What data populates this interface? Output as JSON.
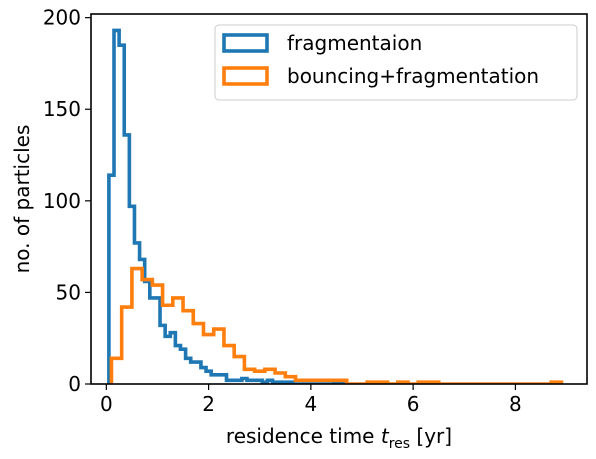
{
  "chart_data": {
    "type": "histogram",
    "xlabel_prefix": "residence time ",
    "xlabel_var": "t",
    "xlabel_sub": "res",
    "xlabel_suffix": " [yr]",
    "ylabel": "no. of particles",
    "xlim": [
      -0.3,
      9.4
    ],
    "ylim": [
      0,
      202
    ],
    "xticks": [
      0,
      2,
      4,
      6,
      8
    ],
    "yticks": [
      0,
      50,
      100,
      150,
      200
    ],
    "legend_position": "top-right",
    "series": [
      {
        "name": "fragmentaion",
        "color": "#1f77b4",
        "bin_edges": [
          0.05,
          0.15,
          0.25,
          0.35,
          0.45,
          0.55,
          0.65,
          0.75,
          0.85,
          0.95,
          1.05,
          1.15,
          1.25,
          1.35,
          1.45,
          1.55,
          1.65,
          1.75,
          1.85,
          1.95,
          2.05,
          2.15,
          2.25,
          2.35,
          2.45,
          2.55,
          2.65,
          2.75,
          2.85,
          2.95,
          3.05,
          3.15,
          3.25,
          3.35,
          3.45,
          3.55,
          3.65,
          3.75,
          3.85,
          3.95,
          4.05,
          4.15,
          4.25,
          4.35,
          4.45,
          4.55,
          4.65
        ],
        "counts": [
          114,
          193,
          185,
          136,
          97,
          77,
          68,
          56,
          47,
          47,
          32,
          26,
          28,
          21,
          19,
          14,
          12,
          12,
          9,
          7,
          5,
          5,
          5,
          2,
          2,
          2,
          3,
          2,
          2,
          2,
          1,
          2,
          1,
          1,
          1,
          1,
          0,
          0,
          0,
          0,
          0,
          0,
          0,
          0,
          1,
          1
        ]
      },
      {
        "name": "bouncing+fragmentation",
        "color": "#ff7f0e",
        "bin_edges": [
          0.1,
          0.3,
          0.5,
          0.7,
          0.9,
          1.1,
          1.3,
          1.5,
          1.7,
          1.9,
          2.1,
          2.3,
          2.5,
          2.7,
          2.9,
          3.1,
          3.3,
          3.5,
          3.7,
          3.9,
          4.1,
          4.3,
          4.5,
          4.7,
          4.9,
          5.1,
          5.3,
          5.5,
          5.7,
          5.9,
          6.1,
          6.3,
          6.5,
          6.7,
          6.9,
          7.1,
          7.3,
          7.5,
          7.7,
          7.9,
          8.1,
          8.3,
          8.5,
          8.7,
          8.9
        ],
        "counts": [
          14,
          42,
          63,
          57,
          54,
          43,
          47,
          40,
          33,
          27,
          30,
          21,
          15,
          8,
          7,
          8,
          6,
          4,
          2,
          2,
          2,
          2,
          2,
          0,
          0,
          1,
          1,
          0,
          1,
          0,
          1,
          1,
          0,
          0,
          0,
          0,
          0,
          0,
          0,
          0,
          0,
          0,
          0,
          1
        ]
      }
    ]
  }
}
